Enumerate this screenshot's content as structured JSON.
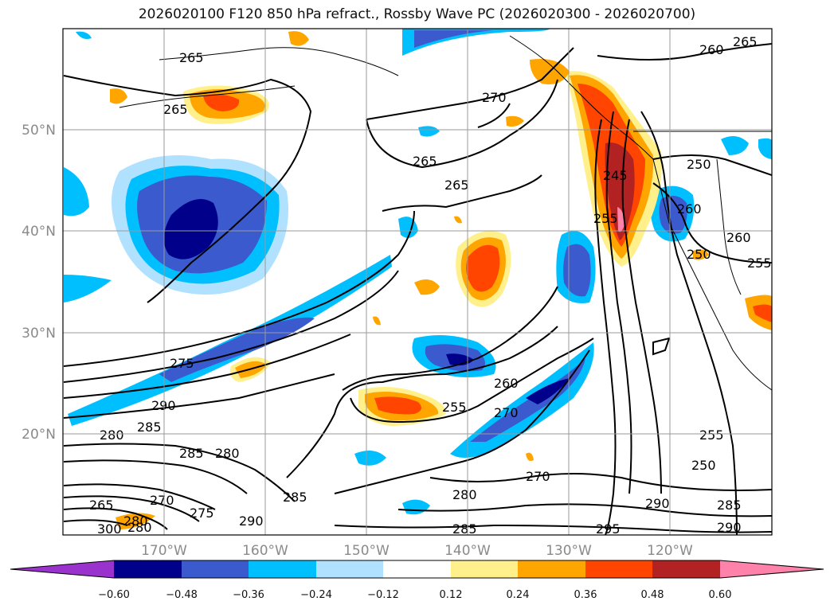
{
  "title": "2026020100 F120 850 hPa refract., Rossby Wave PC (2026020300 - 2026020700)",
  "lat_labels": [
    "50°N",
    "40°N",
    "30°N",
    "20°N"
  ],
  "lon_labels": [
    "170°W",
    "160°W",
    "150°W",
    "140°W",
    "130°W",
    "120°W"
  ],
  "contour_labels": [
    "265",
    "265",
    "270",
    "265",
    "265",
    "260",
    "265",
    "250",
    "245",
    "255",
    "260",
    "260",
    "250",
    "255",
    "275",
    "290",
    "285",
    "280",
    "285",
    "280",
    "255",
    "260",
    "270",
    "255",
    "250",
    "270",
    "280",
    "285",
    "265",
    "270",
    "275",
    "290",
    "280",
    "285",
    "295",
    "290",
    "285",
    "290",
    "300",
    "280"
  ],
  "colorbar": {
    "ticks": [
      "−0.60",
      "−0.48",
      "−0.36",
      "−0.24",
      "−0.12",
      "0.12",
      "0.24",
      "0.36",
      "0.48",
      "0.60"
    ],
    "colors": [
      "#9a32cd",
      "#00008b",
      "#3a5acd",
      "#00bfff",
      "#b0e2ff",
      "#ffffff",
      "#fff08c",
      "#ffa500",
      "#ff4500",
      "#b22222",
      "#ff82ab"
    ]
  }
}
